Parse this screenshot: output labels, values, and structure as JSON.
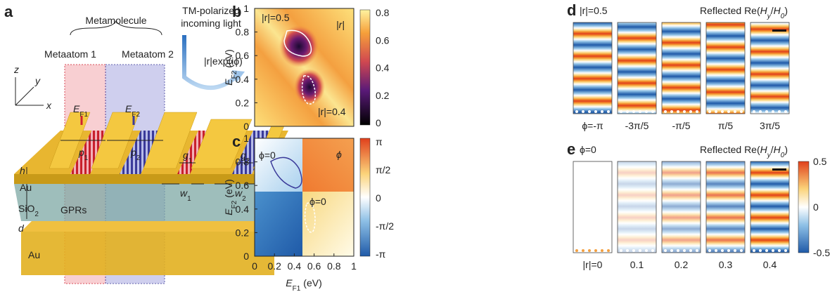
{
  "panel_a": {
    "label": "a",
    "metamolecule": "Metamolecule",
    "metaatom_1": "Metaatom 1",
    "metaatom_2": "Metaatom 2",
    "light": [
      "TM-polarized",
      "incoming light"
    ],
    "reflection": "|r|exp(iϕ)",
    "axes": {
      "z": "z",
      "y": "y",
      "x": "x"
    },
    "e_f1": {
      "main": "E",
      "sub": "F1"
    },
    "e_f2": {
      "main": "E",
      "sub": "F2"
    },
    "h": "h",
    "au_top": "Au",
    "d": "d",
    "sio2": {
      "main": "SiO",
      "sub": "2"
    },
    "gprs": "GPRs",
    "au_bottom": "Au",
    "p1": {
      "main": "p",
      "sub": "1"
    },
    "p2": {
      "main": "p",
      "sub": "2"
    },
    "g1": {
      "main": "g",
      "sub": "1"
    },
    "g2": {
      "main": "g",
      "sub": "2"
    },
    "w1": {
      "main": "w",
      "sub": "1"
    },
    "w2": {
      "main": "w",
      "sub": "2"
    }
  },
  "panel_b": {
    "label": "b",
    "y_label": {
      "main": "E",
      "sub": "F2",
      "unit": "(eV)"
    },
    "yticks": [
      0,
      0.2,
      0.4,
      0.6,
      0.8,
      1
    ],
    "colorbar_ticks": [
      0,
      0.2,
      0.4,
      0.6,
      0.8
    ],
    "annotations": [
      "|r|=0.5",
      "|r|=0.4"
    ],
    "map_label": "|r|"
  },
  "panel_c": {
    "label": "c",
    "y_label": {
      "main": "E",
      "sub": "F2",
      "unit": "(eV)"
    },
    "x_label": {
      "main": "E",
      "sub": "F1",
      "unit": "(eV)"
    },
    "yticks": [
      0,
      0.2,
      0.4,
      0.6,
      0.8,
      1
    ],
    "xticks": [
      0,
      0.2,
      0.4,
      0.6,
      0.8,
      1
    ],
    "colorbar_ticks": [
      "π",
      "π/2",
      "0",
      "-π/2",
      "-π"
    ],
    "annotations": [
      "ϕ=0",
      "ϕ=0"
    ],
    "map_label": "ϕ"
  },
  "panel_d": {
    "label": "d",
    "condition": "|r|=0.5",
    "title": [
      "Reflected Re(",
      "H",
      "y",
      "/",
      "H",
      "0",
      ")"
    ],
    "frames": [
      "ϕ=-π",
      "-3π/5",
      "-π/5",
      "π/5",
      "3π/5"
    ]
  },
  "panel_e": {
    "label": "e",
    "condition": "ϕ=0",
    "title": [
      "Reflected Re(",
      "H",
      "y",
      "/",
      "H",
      "0",
      ")"
    ],
    "frames": [
      "|r|=0",
      "0.1",
      "0.2",
      "0.3",
      "0.4"
    ],
    "colorbar_ticks": [
      0.5,
      0,
      -0.5
    ]
  }
}
